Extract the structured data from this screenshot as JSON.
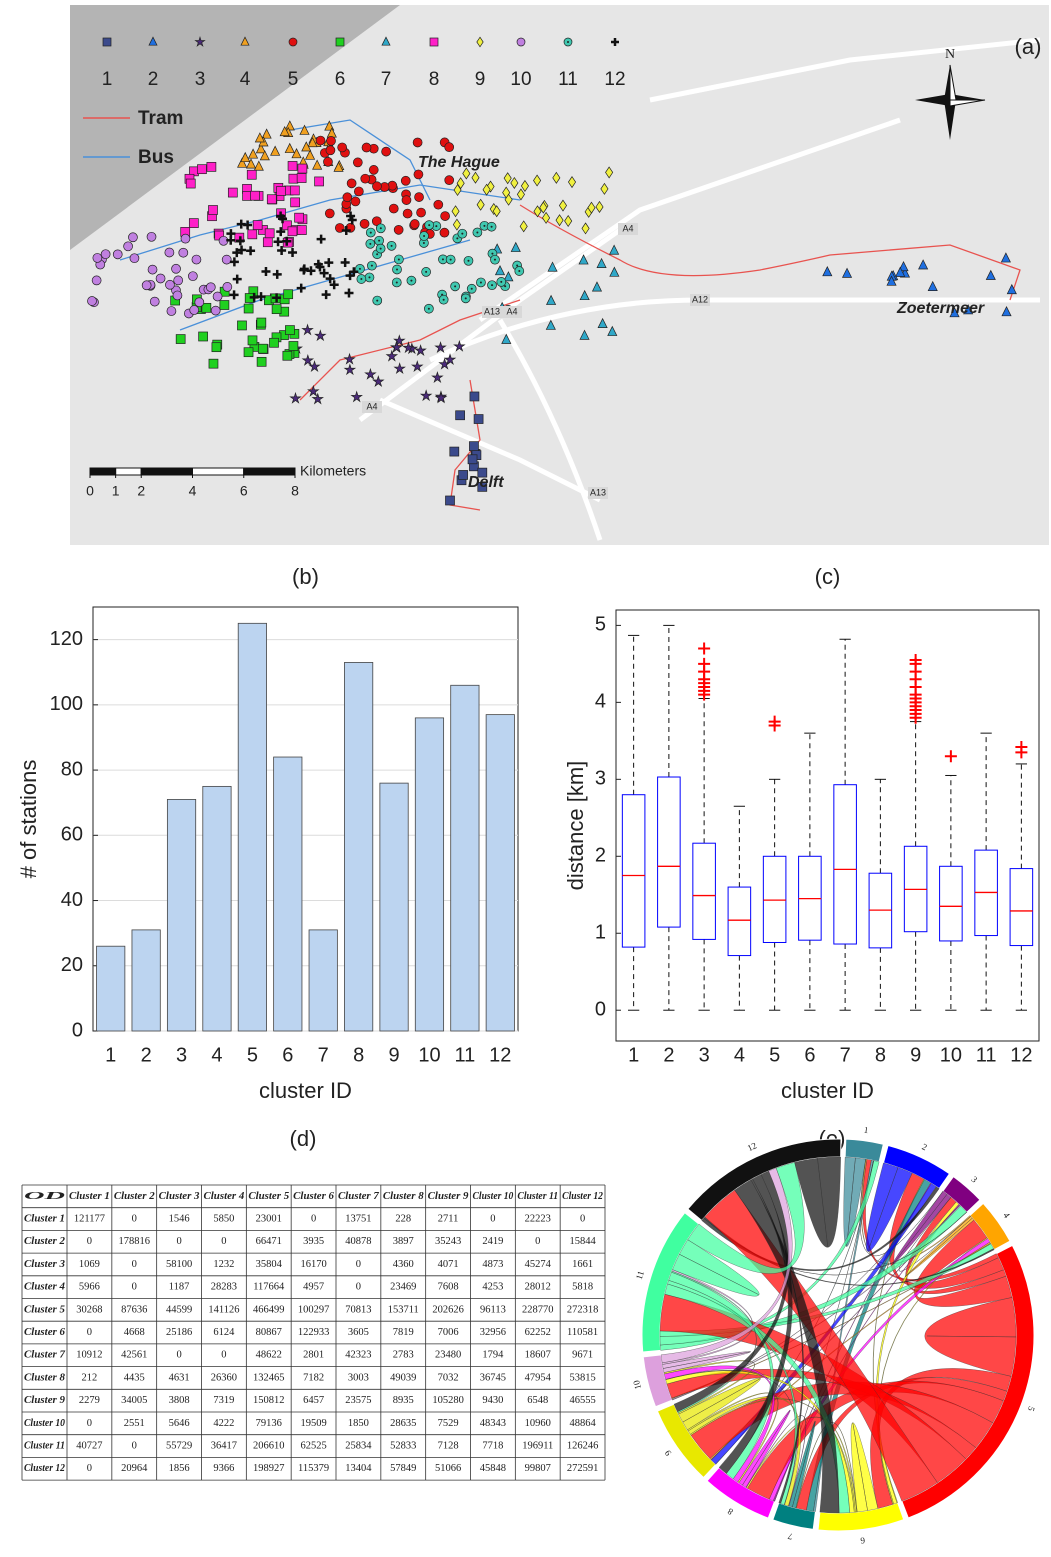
{
  "map": {
    "label": "(a)",
    "north": "N",
    "places": [
      "The Hague",
      "Zoetermeer",
      "Delft"
    ],
    "roads": [
      "A4",
      "A12",
      "A13",
      "A4",
      "A4",
      "A13"
    ],
    "lines": [
      {
        "label": "Tram",
        "color": "#e8534f"
      },
      {
        "label": "Bus",
        "color": "#4a90d9"
      }
    ],
    "legend": [
      {
        "label": "1",
        "color": "#3b4a8c",
        "marker": "square"
      },
      {
        "label": "2",
        "color": "#1f6fe0",
        "marker": "triangle"
      },
      {
        "label": "3",
        "color": "#4b2a7a",
        "marker": "star"
      },
      {
        "label": "4",
        "color": "#f0a020",
        "marker": "triangle"
      },
      {
        "label": "5",
        "color": "#e01010",
        "marker": "circle"
      },
      {
        "label": "6",
        "color": "#20d020",
        "marker": "square"
      },
      {
        "label": "7",
        "color": "#30a8c8",
        "marker": "triangle"
      },
      {
        "label": "8",
        "color": "#ff20c8",
        "marker": "square"
      },
      {
        "label": "9",
        "color": "#f0f040",
        "marker": "diamond"
      },
      {
        "label": "10",
        "color": "#c080e0",
        "marker": "circle"
      },
      {
        "label": "11",
        "color": "#40c8b0",
        "marker": "dotcircle"
      },
      {
        "label": "12",
        "color": "#111111",
        "marker": "cross"
      }
    ],
    "scale": {
      "title": "Kilometers",
      "xlim": [
        0,
        8
      ],
      "ticks": [
        0,
        1,
        2,
        4,
        6,
        8
      ]
    }
  },
  "chart_data": [
    {
      "type": "bar",
      "panel_label": "(b)",
      "xlabel": "cluster ID",
      "ylabel": "# of stations",
      "categories": [
        "1",
        "2",
        "3",
        "4",
        "5",
        "6",
        "7",
        "8",
        "9",
        "10",
        "11",
        "12"
      ],
      "values": [
        26,
        31,
        71,
        75,
        125,
        84,
        31,
        113,
        76,
        96,
        106,
        97
      ],
      "color": "#bcd4f0",
      "ylim": [
        0,
        130
      ],
      "yticks": [
        0,
        20,
        40,
        60,
        80,
        100,
        120
      ],
      "grid": true
    },
    {
      "type": "box",
      "panel_label": "(c)",
      "xlabel": "cluster ID",
      "ylabel": "distance [km]",
      "categories": [
        "1",
        "2",
        "3",
        "4",
        "5",
        "6",
        "7",
        "8",
        "9",
        "10",
        "11",
        "12"
      ],
      "color": "#0000ff",
      "median_color": "#ff0000",
      "outlier_color": "#ff0000",
      "ylim": [
        -0.4,
        5.2
      ],
      "yticks": [
        0,
        1,
        2,
        3,
        4,
        5
      ],
      "boxes": [
        {
          "min": 0,
          "q1": 0.82,
          "median": 1.75,
          "q3": 2.8,
          "max": 4.87,
          "outliers": []
        },
        {
          "min": 0,
          "q1": 1.08,
          "median": 1.87,
          "q3": 3.03,
          "max": 5.0,
          "outliers": []
        },
        {
          "min": 0,
          "q1": 0.92,
          "median": 1.49,
          "q3": 2.17,
          "max": 4.05,
          "outliers": [
            4.1,
            4.15,
            4.2,
            4.25,
            4.3,
            4.4,
            4.5,
            4.7
          ]
        },
        {
          "min": 0,
          "q1": 0.71,
          "median": 1.17,
          "q3": 1.6,
          "max": 2.65,
          "outliers": []
        },
        {
          "min": 0,
          "q1": 0.88,
          "median": 1.43,
          "q3": 2.0,
          "max": 3.0,
          "outliers": [
            3.7,
            3.75
          ]
        },
        {
          "min": 0,
          "q1": 0.91,
          "median": 1.45,
          "q3": 2.0,
          "max": 3.6,
          "outliers": []
        },
        {
          "min": 0,
          "q1": 0.86,
          "median": 1.83,
          "q3": 2.93,
          "max": 4.82,
          "outliers": []
        },
        {
          "min": 0,
          "q1": 0.81,
          "median": 1.3,
          "q3": 1.78,
          "max": 3.0,
          "outliers": []
        },
        {
          "min": 0,
          "q1": 1.02,
          "median": 1.57,
          "q3": 2.13,
          "max": 3.75,
          "outliers": [
            3.8,
            3.85,
            3.9,
            3.95,
            4.0,
            4.05,
            4.1,
            4.2,
            4.3,
            4.4,
            4.5,
            4.55
          ]
        },
        {
          "min": 0,
          "q1": 0.9,
          "median": 1.35,
          "q3": 1.87,
          "max": 3.05,
          "outliers": [
            3.3
          ]
        },
        {
          "min": 0,
          "q1": 0.97,
          "median": 1.53,
          "q3": 2.08,
          "max": 3.6,
          "outliers": []
        },
        {
          "min": 0,
          "q1": 0.84,
          "median": 1.29,
          "q3": 1.84,
          "max": 3.2,
          "outliers": [
            3.35,
            3.42
          ]
        }
      ]
    }
  ],
  "table": {
    "label": "(d)",
    "header": [
      "OD",
      "Cluster 1",
      "Cluster 2",
      "Cluster 3",
      "Cluster 4",
      "Cluster 5",
      "Cluster 6",
      "Cluster 7",
      "Cluster 8",
      "Cluster 9",
      "Cluster 10",
      "Cluster 11",
      "Cluster 12"
    ],
    "rows": [
      {
        "name": "Cluster 1",
        "values": [
          121177,
          0,
          1546,
          5850,
          23001,
          0,
          13751,
          228,
          2711,
          0,
          22223,
          0
        ]
      },
      {
        "name": "Cluster 2",
        "values": [
          0,
          178816,
          0,
          0,
          66471,
          3935,
          40878,
          3897,
          35243,
          2419,
          0,
          15844
        ]
      },
      {
        "name": "Cluster 3",
        "values": [
          1069,
          0,
          58100,
          1232,
          35804,
          16170,
          0,
          4360,
          4071,
          4873,
          45274,
          1661
        ]
      },
      {
        "name": "Cluster 4",
        "values": [
          5966,
          0,
          1187,
          28283,
          117664,
          4957,
          0,
          23469,
          7608,
          4253,
          28012,
          5818
        ]
      },
      {
        "name": "Cluster 5",
        "values": [
          30268,
          87636,
          44599,
          141126,
          466499,
          100297,
          70813,
          153711,
          202626,
          96113,
          228770,
          272318
        ]
      },
      {
        "name": "Cluster 6",
        "values": [
          0,
          4668,
          25186,
          6124,
          80867,
          122933,
          3605,
          7819,
          7006,
          32956,
          62252,
          110581
        ]
      },
      {
        "name": "Cluster 7",
        "values": [
          10912,
          42561,
          0,
          0,
          48622,
          2801,
          42323,
          2783,
          23480,
          1794,
          18607,
          9671
        ]
      },
      {
        "name": "Cluster 8",
        "values": [
          212,
          4435,
          4631,
          26360,
          132465,
          7182,
          3003,
          49039,
          7032,
          36745,
          47954,
          53815
        ]
      },
      {
        "name": "Cluster 9",
        "values": [
          2279,
          34005,
          3808,
          7319,
          150812,
          6457,
          23575,
          8935,
          105280,
          9430,
          6548,
          46555
        ]
      },
      {
        "name": "Cluster 10",
        "values": [
          0,
          2551,
          5646,
          4222,
          79136,
          19509,
          1850,
          28635,
          7529,
          48343,
          10960,
          48864
        ]
      },
      {
        "name": "Cluster 11",
        "values": [
          40727,
          0,
          55729,
          36417,
          206610,
          62525,
          25834,
          52833,
          7128,
          7718,
          196911,
          126246
        ]
      },
      {
        "name": "Cluster 12",
        "values": [
          0,
          20964,
          1856,
          9366,
          198927,
          115379,
          13404,
          57849,
          51066,
          45848,
          99807,
          272591
        ]
      }
    ]
  },
  "chord": {
    "label": "(e)",
    "labels": [
      "1",
      "2",
      "3",
      "4",
      "5",
      "6",
      "7",
      "8",
      "9",
      "10",
      "11",
      "12"
    ],
    "colors": [
      "#3a8a9a",
      "#0000ff",
      "#800080",
      "#ffa500",
      "#ff0000",
      "#ffff00",
      "#008080",
      "#ff00ff",
      "#e8e800",
      "#dda0dd",
      "#40ffa0",
      "#111111"
    ]
  }
}
